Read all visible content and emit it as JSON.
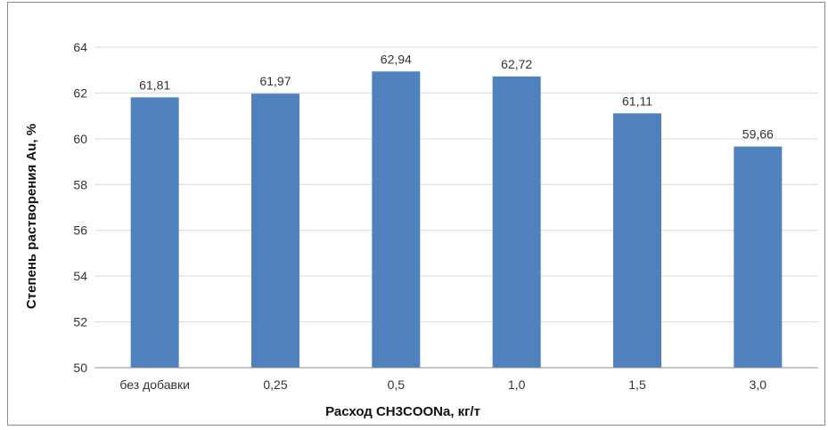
{
  "chart_data": {
    "type": "bar",
    "categories": [
      "без добавки",
      "0,25",
      "0,5",
      "1,0",
      "1,5",
      "3,0"
    ],
    "values": [
      61.81,
      61.97,
      62.94,
      62.72,
      61.11,
      59.66
    ],
    "data_labels": [
      "61,81",
      "61,97",
      "62,94",
      "62,72",
      "61,11",
      "59,66"
    ],
    "xlabel": "Расход CH3COONa, кг/т",
    "ylabel": "Степень растворения Au, %",
    "ylim": [
      50,
      64
    ],
    "yticks": [
      50,
      52,
      54,
      56,
      58,
      60,
      62,
      64
    ],
    "grid": true,
    "bar_color": "#4f81bd",
    "grid_color": "#d9d9d9"
  }
}
